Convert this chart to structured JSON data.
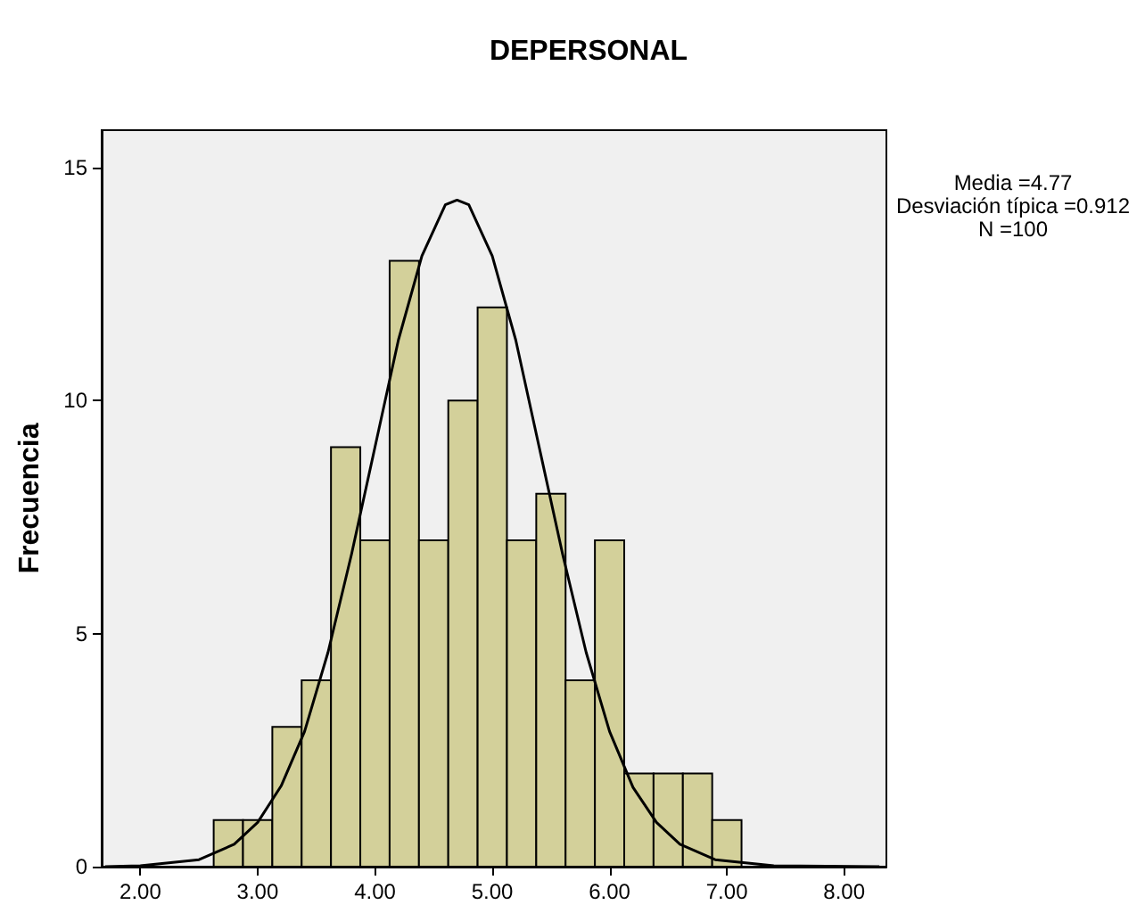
{
  "chart_data": {
    "type": "histogram",
    "title": "DEPERSONAL",
    "ylabel": "Frecuencia",
    "bins": [
      2.625,
      2.875,
      3.125,
      3.375,
      3.625,
      3.875,
      4.125,
      4.375,
      4.625,
      4.875,
      5.125,
      5.375,
      5.625,
      5.875,
      6.125,
      6.375,
      6.625,
      6.875,
      7.125
    ],
    "values": [
      1,
      1,
      3,
      4,
      9,
      7,
      13,
      7,
      10,
      12,
      7,
      8,
      4,
      7,
      2,
      2,
      2,
      1
    ],
    "color": "#d3d09a",
    "series": [
      {
        "type": "line",
        "color": "#000000",
        "x": [
          1.7,
          2.0,
          2.5,
          2.8,
          3.0,
          3.2,
          3.4,
          3.6,
          3.8,
          4.0,
          4.2,
          4.4,
          4.6,
          4.7,
          4.8,
          5.0,
          5.2,
          5.4,
          5.6,
          5.8,
          6.0,
          6.2,
          6.4,
          6.6,
          6.9,
          7.4,
          8.3
        ],
        "values": [
          0,
          0.02,
          0.15,
          0.48,
          0.95,
          1.73,
          2.9,
          4.6,
          6.7,
          9.0,
          11.3,
          13.1,
          14.2,
          14.3,
          14.2,
          13.1,
          11.3,
          9.0,
          6.7,
          4.6,
          2.9,
          1.7,
          0.95,
          0.48,
          0.15,
          0.02,
          0
        ]
      }
    ],
    "marker": "none",
    "xlim": [
      1.67,
      8.36
    ],
    "xticks": [
      {
        "value": 2,
        "label": "2.00"
      },
      {
        "value": 3,
        "label": "3.00"
      },
      {
        "value": 4,
        "label": "4.00"
      },
      {
        "value": 5,
        "label": "5.00"
      },
      {
        "value": 6,
        "label": "6.00"
      },
      {
        "value": 7,
        "label": "7.00"
      },
      {
        "value": 8,
        "label": "8.00"
      }
    ],
    "ylim": [
      0,
      15.8
    ],
    "yticks": [
      0,
      5,
      10,
      15
    ],
    "grid": false,
    "annotations": [
      "Media =4.77",
      "Desviación típica =0.912",
      "N =100"
    ]
  }
}
